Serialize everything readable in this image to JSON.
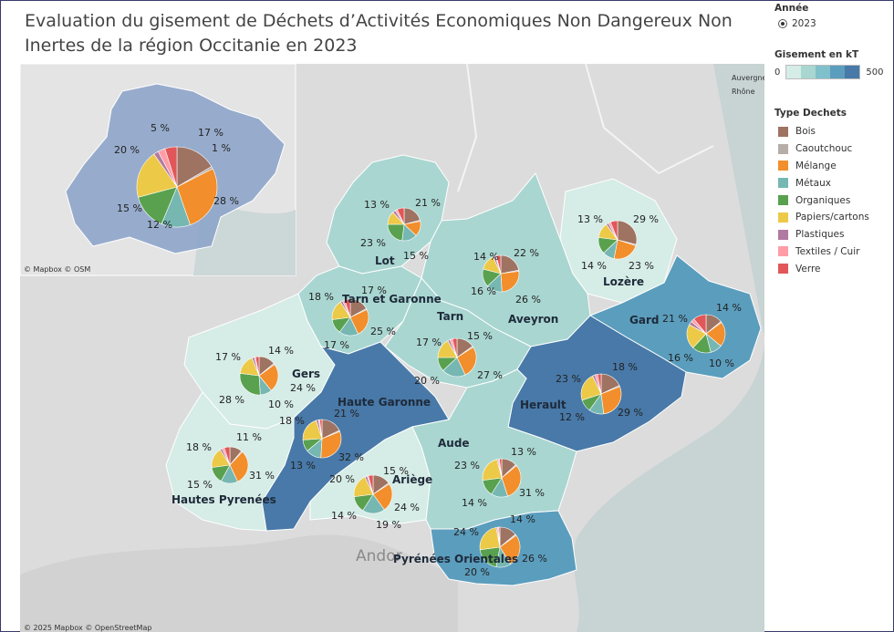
{
  "title": "Evaluation du gisement de Déchets d’Activités Economiques Non Dangereux Non Inertes de la région Occitanie en 2023",
  "filter": {
    "title": "Année",
    "selected": "2023"
  },
  "ramp": {
    "title": "Gisement en kT",
    "min": "0",
    "max": "500",
    "colors": [
      "#d6ece6",
      "#a9d6d1",
      "#7fc0cb",
      "#5b9dbd",
      "#4879a8"
    ]
  },
  "legend": {
    "title": "Type Dechets",
    "items": [
      {
        "label": "Bois",
        "color": "#9e7361"
      },
      {
        "label": "Caoutchouc",
        "color": "#b5ada8"
      },
      {
        "label": "Mélange",
        "color": "#f28e2b"
      },
      {
        "label": "Métaux",
        "color": "#76b7b2"
      },
      {
        "label": "Organiques",
        "color": "#59a14f"
      },
      {
        "label": "Papiers/cartons",
        "color": "#edc948"
      },
      {
        "label": "Plastiques",
        "color": "#b07aa1"
      },
      {
        "label": "Textiles / Cuir",
        "color": "#ff9da7"
      },
      {
        "label": "Verre",
        "color": "#e15759"
      }
    ]
  },
  "map_labels": {
    "andorra": "Andor",
    "auvergne": "Auvergne-",
    "rhone": "Rhône",
    "osm_small": "© Mapbox  © OSM",
    "attribution": "© 2025 Mapbox  © OpenStreetMap"
  },
  "regions": [
    {
      "name": "Lot",
      "fill": "#a9d6d1",
      "pie": [
        [
          "Bois",
          21
        ],
        [
          "Caoutchouc",
          1
        ],
        [
          "Mélange",
          15
        ],
        [
          "Métaux",
          15
        ],
        [
          "Organiques",
          23
        ],
        [
          "Papiers/cartons",
          13
        ],
        [
          "Plastiques",
          3
        ],
        [
          "Textiles / Cuir",
          2
        ],
        [
          "Verre",
          7
        ]
      ],
      "labels": [
        "13 %",
        "21 %",
        "23 %",
        "15 %"
      ]
    },
    {
      "name": "Lozère",
      "fill": "#d6ece6",
      "pie": [
        [
          "Bois",
          29
        ],
        [
          "Caoutchouc",
          1
        ],
        [
          "Mélange",
          23
        ],
        [
          "Métaux",
          10
        ],
        [
          "Organiques",
          14
        ],
        [
          "Papiers/cartons",
          13
        ],
        [
          "Plastiques",
          2
        ],
        [
          "Textiles / Cuir",
          2
        ],
        [
          "Verre",
          6
        ]
      ],
      "labels": [
        "13 %",
        "29 %",
        "14 %",
        "23 %"
      ]
    },
    {
      "name": "Aveyron",
      "fill": "#a9d6d1",
      "pie": [
        [
          "Bois",
          22
        ],
        [
          "Caoutchouc",
          1
        ],
        [
          "Mélange",
          26
        ],
        [
          "Métaux",
          14
        ],
        [
          "Organiques",
          16
        ],
        [
          "Papiers/cartons",
          14
        ],
        [
          "Plastiques",
          2
        ],
        [
          "Textiles / Cuir",
          1
        ],
        [
          "Verre",
          4
        ]
      ],
      "labels": [
        "14 %",
        "22 %",
        "16 %",
        "26 %"
      ]
    },
    {
      "name": "Tarn et Garonne",
      "fill": "#a9d6d1",
      "pie": [
        [
          "Bois",
          17
        ],
        [
          "Caoutchouc",
          1
        ],
        [
          "Mélange",
          25
        ],
        [
          "Métaux",
          17
        ],
        [
          "Organiques",
          13
        ],
        [
          "Papiers/cartons",
          18
        ],
        [
          "Plastiques",
          2
        ],
        [
          "Textiles / Cuir",
          2
        ],
        [
          "Verre",
          5
        ]
      ],
      "labels": [
        "18 %",
        "17 %",
        "17 %",
        "25 %"
      ]
    },
    {
      "name": "Tarn",
      "fill": "#a9d6d1",
      "pie": [
        [
          "Bois",
          15
        ],
        [
          "Caoutchouc",
          1
        ],
        [
          "Mélange",
          27
        ],
        [
          "Métaux",
          20
        ],
        [
          "Organiques",
          12
        ],
        [
          "Papiers/cartons",
          17
        ],
        [
          "Plastiques",
          2
        ],
        [
          "Textiles / Cuir",
          2
        ],
        [
          "Verre",
          4
        ]
      ],
      "labels": [
        "17 %",
        "15 %",
        "20 %",
        "27 %"
      ]
    },
    {
      "name": "Gard",
      "fill": "#5b9dbd",
      "pie": [
        [
          "Bois",
          14
        ],
        [
          "Caoutchouc",
          1
        ],
        [
          "Mélange",
          21
        ],
        [
          "Métaux",
          10
        ],
        [
          "Organiques",
          16
        ],
        [
          "Papiers/cartons",
          21
        ],
        [
          "Plastiques",
          3
        ],
        [
          "Textiles / Cuir",
          3
        ],
        [
          "Verre",
          11
        ]
      ],
      "labels": [
        "21 %",
        "14 %",
        "16 %",
        "10 %"
      ]
    },
    {
      "name": "Gers",
      "fill": "#d6ece6",
      "pie": [
        [
          "Bois",
          14
        ],
        [
          "Caoutchouc",
          1
        ],
        [
          "Mélange",
          24
        ],
        [
          "Métaux",
          10
        ],
        [
          "Organiques",
          28
        ],
        [
          "Papiers/cartons",
          17
        ],
        [
          "Plastiques",
          2
        ],
        [
          "Textiles / Cuir",
          1
        ],
        [
          "Verre",
          3
        ]
      ],
      "labels": [
        "17 %",
        "14 %",
        "24 %",
        "28 %",
        "10 %"
      ]
    },
    {
      "name": "Haute Garonne",
      "fill": "#4879a8",
      "pie": [
        [
          "Bois",
          18
        ],
        [
          "Caoutchouc",
          1
        ],
        [
          "Mélange",
          32
        ],
        [
          "Métaux",
          13
        ],
        [
          "Organiques",
          10
        ],
        [
          "Papiers/cartons",
          21
        ],
        [
          "Plastiques",
          2
        ],
        [
          "Textiles / Cuir",
          1
        ],
        [
          "Verre",
          2
        ]
      ],
      "labels": [
        "18 %",
        "21 %",
        "32 %",
        "13 %"
      ]
    },
    {
      "name": "Herault",
      "fill": "#4879a8",
      "pie": [
        [
          "Bois",
          18
        ],
        [
          "Caoutchouc",
          1
        ],
        [
          "Mélange",
          29
        ],
        [
          "Métaux",
          12
        ],
        [
          "Organiques",
          10
        ],
        [
          "Papiers/cartons",
          23
        ],
        [
          "Plastiques",
          2
        ],
        [
          "Textiles / Cuir",
          2
        ],
        [
          "Verre",
          3
        ]
      ],
      "labels": [
        "23 %",
        "18 %",
        "12 %",
        "29 %"
      ]
    },
    {
      "name": "Hautes Pyrenées",
      "fill": "#d6ece6",
      "pie": [
        [
          "Bois",
          11
        ],
        [
          "Caoutchouc",
          1
        ],
        [
          "Mélange",
          31
        ],
        [
          "Métaux",
          15
        ],
        [
          "Organiques",
          15
        ],
        [
          "Papiers/cartons",
          18
        ],
        [
          "Plastiques",
          2
        ],
        [
          "Textiles / Cuir",
          2
        ],
        [
          "Verre",
          5
        ]
      ],
      "labels": [
        "11 %",
        "18 %",
        "15 %",
        "31 %"
      ]
    },
    {
      "name": "Ariège",
      "fill": "#d6ece6",
      "pie": [
        [
          "Bois",
          15
        ],
        [
          "Caoutchouc",
          1
        ],
        [
          "Mélange",
          24
        ],
        [
          "Métaux",
          19
        ],
        [
          "Organiques",
          14
        ],
        [
          "Papiers/cartons",
          20
        ],
        [
          "Plastiques",
          2
        ],
        [
          "Textiles / Cuir",
          1
        ],
        [
          "Verre",
          4
        ]
      ],
      "labels": [
        "15 %",
        "20 %",
        "24 %",
        "14 %",
        "19 %"
      ]
    },
    {
      "name": "Aude",
      "fill": "#a9d6d1",
      "pie": [
        [
          "Bois",
          13
        ],
        [
          "Caoutchouc",
          1
        ],
        [
          "Mélange",
          31
        ],
        [
          "Métaux",
          14
        ],
        [
          "Organiques",
          14
        ],
        [
          "Papiers/cartons",
          23
        ],
        [
          "Plastiques",
          1
        ],
        [
          "Textiles / Cuir",
          1
        ],
        [
          "Verre",
          2
        ]
      ],
      "labels": [
        "13 %",
        "23 %",
        "14 %",
        "31 %"
      ]
    },
    {
      "name": "Pyrénées Orientales",
      "fill": "#5b9dbd",
      "pie": [
        [
          "Bois",
          14
        ],
        [
          "Caoutchouc",
          1
        ],
        [
          "Mélange",
          26
        ],
        [
          "Métaux",
          12
        ],
        [
          "Organiques",
          20
        ],
        [
          "Papiers/cartons",
          24
        ],
        [
          "Plastiques",
          1
        ],
        [
          "Textiles / Cuir",
          1
        ],
        [
          "Verre",
          1
        ]
      ],
      "labels": [
        "24 %",
        "14 %",
        "20 %",
        "26 %"
      ]
    },
    {
      "name": "Occitanie",
      "fill": "#8ea5c9",
      "pie": [
        [
          "Bois",
          17
        ],
        [
          "Caoutchouc",
          1
        ],
        [
          "Mélange",
          28
        ],
        [
          "Métaux",
          12
        ],
        [
          "Organiques",
          15
        ],
        [
          "Papiers/cartons",
          20
        ],
        [
          "Plastiques",
          2
        ],
        [
          "Textiles / Cuir",
          3
        ],
        [
          "Verre",
          5
        ]
      ],
      "labels": [
        "5 %",
        "17 %",
        "1 %",
        "20 %",
        "28 %",
        "15 %",
        "12 %"
      ]
    }
  ]
}
